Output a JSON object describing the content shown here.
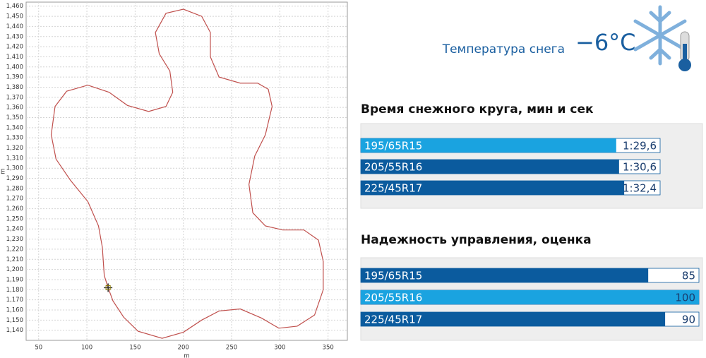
{
  "title": "Температура снега",
  "temperature": "−6°C",
  "chart_data": [
    {
      "type": "line",
      "xlabel": "m",
      "ylabel": "m",
      "color": "#c0504d",
      "grid": true,
      "x": [
        122,
        127,
        138,
        153,
        178,
        200,
        219,
        237,
        259,
        281,
        299,
        318,
        336,
        345,
        345,
        340,
        325,
        303,
        285,
        272,
        268,
        274,
        285,
        292,
        288,
        277,
        259,
        237,
        228,
        228,
        219,
        200,
        182,
        171,
        175,
        186,
        189,
        182,
        164,
        142,
        123,
        101,
        79,
        67,
        63,
        68,
        83,
        101,
        112,
        116,
        118,
        122
      ],
      "y": [
        1182,
        1169,
        1153,
        1139,
        1132,
        1138,
        1150,
        1159,
        1161,
        1152,
        1142,
        1144,
        1155,
        1180,
        1208,
        1229,
        1239,
        1239,
        1243,
        1256,
        1284,
        1312,
        1333,
        1361,
        1378,
        1384,
        1384,
        1390,
        1410,
        1434,
        1450,
        1457,
        1453,
        1434,
        1413,
        1396,
        1375,
        1361,
        1356,
        1362,
        1375,
        1382,
        1376,
        1361,
        1333,
        1309,
        1288,
        1267,
        1243,
        1222,
        1194,
        1182
      ],
      "marker": {
        "x": 122,
        "y": 1182
      },
      "xlim": [
        37,
        370
      ],
      "ylim": [
        1130,
        1464
      ],
      "xticks": [
        50,
        100,
        150,
        200,
        250,
        300,
        350
      ],
      "yticks": [
        {
          "value": 1140,
          "label": "1,140"
        },
        {
          "value": 1150,
          "label": "1,150"
        },
        {
          "value": 1160,
          "label": "1,160"
        },
        {
          "value": 1170,
          "label": "1,170"
        },
        {
          "value": 1180,
          "label": "1,180"
        },
        {
          "value": 1190,
          "label": "1,190"
        },
        {
          "value": 1200,
          "label": "1,200"
        },
        {
          "value": 1210,
          "label": "1,210"
        },
        {
          "value": 1220,
          "label": "1,220"
        },
        {
          "value": 1230,
          "label": "1,230"
        },
        {
          "value": 1240,
          "label": "1,240"
        },
        {
          "value": 1250,
          "label": "1,250"
        },
        {
          "value": 1260,
          "label": "1,260"
        },
        {
          "value": 1270,
          "label": "1,270"
        },
        {
          "value": 1280,
          "label": "1,280"
        },
        {
          "value": 1290,
          "label": "1,290"
        },
        {
          "value": 1300,
          "label": "1,300"
        },
        {
          "value": 1310,
          "label": "1,310"
        },
        {
          "value": 1320,
          "label": "1,320"
        },
        {
          "value": 1330,
          "label": "1,330"
        },
        {
          "value": 1340,
          "label": "1,340"
        },
        {
          "value": 1350,
          "label": "1,350"
        },
        {
          "value": 1360,
          "label": "1,360"
        },
        {
          "value": 1370,
          "label": "1,370"
        },
        {
          "value": 1380,
          "label": "1,380"
        },
        {
          "value": 1390,
          "label": "1,390"
        },
        {
          "value": 1400,
          "label": "1,400"
        },
        {
          "value": 1410,
          "label": "1,410"
        },
        {
          "value": 1420,
          "label": "1,420"
        },
        {
          "value": 1430,
          "label": "1,430"
        },
        {
          "value": 1440,
          "label": "1,440"
        },
        {
          "value": 1450,
          "label": "1,450"
        },
        {
          "value": 1460,
          "label": "1,460"
        }
      ]
    },
    {
      "type": "hbar",
      "title": "Время снежного круга, мин и сек",
      "categories": [
        "195/65R15",
        "205/55R16",
        "225/45R17"
      ],
      "values": [
        89.6,
        90.6,
        92.4
      ],
      "value_labels": [
        "1:29,6",
        "1:30,6",
        "1:32,4"
      ],
      "colors": [
        "#1aa3e0",
        "#0b5b9e",
        "#0b5b9e"
      ],
      "xlim": [
        0,
        105
      ]
    },
    {
      "type": "hbar",
      "title": "Надежность управления, оценка",
      "categories": [
        "195/65R15",
        "205/55R16",
        "225/45R17"
      ],
      "values": [
        85,
        100,
        90
      ],
      "colors": [
        "#0b5b9e",
        "#1aa3e0",
        "#0b5b9e"
      ],
      "xlim": [
        0,
        100
      ]
    }
  ]
}
